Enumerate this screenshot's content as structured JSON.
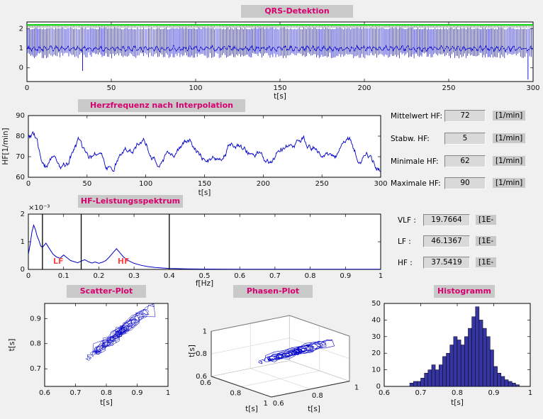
{
  "window": {
    "bg": "#f0f0f0"
  },
  "styles": {
    "title_bg": "#c9c9c9",
    "title_color": "#d6006e",
    "plot_bg": "#ffffff",
    "line_color": "#0000c8",
    "threshold_color": "#00d200",
    "band_label_color": "#ff4a4a",
    "hist_fill": "#3535a3",
    "field_bg": "#d9d9d9",
    "chip_bg": "#c9c9c9"
  },
  "fields": {
    "stats": [
      {
        "label": "Mittelwert HF:",
        "value": "72",
        "unit": "[1/min]"
      },
      {
        "label": "Stabw. HF:",
        "value": "5",
        "unit": "[1/min]"
      },
      {
        "label": "Minimale HF:",
        "value": "62",
        "unit": "[1/min]"
      },
      {
        "label": "Maximale HF:",
        "value": "90",
        "unit": "[1/min]"
      }
    ],
    "bands": [
      {
        "label": "VLF :",
        "value": "19.7664",
        "unit": "[1E-"
      },
      {
        "label": "LF :",
        "value": "46.1367",
        "unit": "[1E-"
      },
      {
        "label": "HF :",
        "value": "37.5419",
        "unit": "[1E-"
      }
    ]
  },
  "chart_data": [
    {
      "id": "qrs",
      "type": "line",
      "title": "QRS-Detektion",
      "xlabel": "t[s]",
      "xlim": [
        0,
        300
      ],
      "ylim": [
        -0.7,
        2.35
      ],
      "xticks": [
        0,
        50,
        100,
        150,
        200,
        250,
        300
      ],
      "yticks": [
        0,
        1,
        2
      ],
      "threshold_line": 2.2,
      "r_peak_level": 2.05,
      "baseline_level": 1.0,
      "beats_per_min": 72,
      "artifact_spikes": [
        [
          33,
          -0.15
        ],
        [
          297,
          -0.6
        ]
      ],
      "description": "ECG trace with detected R-peaks reaching ~2.05 and green detection threshold line at 2.2"
    },
    {
      "id": "hr",
      "type": "line",
      "title": "Herzfrequenz nach Interpolation",
      "xlabel": "t[s]",
      "ylabel": "HF[1/min]",
      "xlim": [
        0,
        300
      ],
      "ylim": [
        60,
        90
      ],
      "xticks": [
        0,
        50,
        100,
        150,
        200,
        250,
        300
      ],
      "yticks": [
        60,
        70,
        80,
        90
      ],
      "mean": 72,
      "std": 5,
      "min": 62,
      "max": 90,
      "description": "Interpolated instantaneous heart rate fluctuating between 62 and 90 1/min around mean 72"
    },
    {
      "id": "spectrum",
      "type": "line",
      "title": "HF-Leistungsspektrum",
      "xlabel": "f[Hz]",
      "y_unit_label": "×10⁻³",
      "xlim": [
        0,
        1
      ],
      "ylim": [
        0,
        2
      ],
      "xticks": [
        0,
        0.1,
        0.2,
        0.3,
        0.4,
        0.5,
        0.6,
        0.7,
        0.8,
        0.9,
        1
      ],
      "yticks": [
        0,
        1,
        2
      ],
      "band_lines": [
        0.04,
        0.15,
        0.4
      ],
      "band_labels": [
        {
          "text": "LF",
          "x": 0.085
        },
        {
          "text": "HF",
          "x": 0.27
        }
      ],
      "vlf": 19.7664,
      "lf": 46.1367,
      "hf": 37.5419,
      "points": [
        [
          0,
          0.55
        ],
        [
          0.005,
          0.9
        ],
        [
          0.01,
          1.35
        ],
        [
          0.015,
          1.6
        ],
        [
          0.02,
          1.45
        ],
        [
          0.025,
          1.2
        ],
        [
          0.03,
          1.05
        ],
        [
          0.035,
          0.85
        ],
        [
          0.04,
          0.8
        ],
        [
          0.05,
          0.95
        ],
        [
          0.06,
          0.75
        ],
        [
          0.07,
          0.55
        ],
        [
          0.08,
          0.45
        ],
        [
          0.09,
          0.4
        ],
        [
          0.1,
          0.52
        ],
        [
          0.11,
          0.42
        ],
        [
          0.12,
          0.32
        ],
        [
          0.13,
          0.28
        ],
        [
          0.14,
          0.24
        ],
        [
          0.15,
          0.3
        ],
        [
          0.16,
          0.35
        ],
        [
          0.17,
          0.28
        ],
        [
          0.18,
          0.23
        ],
        [
          0.19,
          0.27
        ],
        [
          0.2,
          0.22
        ],
        [
          0.21,
          0.26
        ],
        [
          0.22,
          0.32
        ],
        [
          0.23,
          0.45
        ],
        [
          0.24,
          0.6
        ],
        [
          0.25,
          0.75
        ],
        [
          0.26,
          0.6
        ],
        [
          0.27,
          0.45
        ],
        [
          0.28,
          0.35
        ],
        [
          0.29,
          0.28
        ],
        [
          0.3,
          0.22
        ],
        [
          0.32,
          0.15
        ],
        [
          0.34,
          0.1
        ],
        [
          0.36,
          0.07
        ],
        [
          0.38,
          0.05
        ],
        [
          0.4,
          0.035
        ],
        [
          0.45,
          0.02
        ],
        [
          0.5,
          0.012
        ],
        [
          0.6,
          0.008
        ],
        [
          0.7,
          0.006
        ],
        [
          0.8,
          0.005
        ],
        [
          0.9,
          0.004
        ],
        [
          1,
          0.004
        ]
      ]
    },
    {
      "id": "scatter",
      "type": "line",
      "title": "Scatter-Plot",
      "xlabel": "t[s]",
      "ylabel": "t[s]",
      "xlim": [
        0.6,
        1
      ],
      "ylim": [
        0.63,
        0.96
      ],
      "xticks": [
        0.6,
        0.7,
        0.8,
        0.9,
        1
      ],
      "yticks": [
        0.7,
        0.8,
        0.9
      ],
      "description": "Poincaré plot RR(i) vs RR(i+1); connected cloud elongated along the diagonal, centred near 0.83 s"
    },
    {
      "id": "phase",
      "type": "line3d",
      "title": "Phasen-Plot",
      "xlabel": "t[s]",
      "ylabel": "t[s]",
      "zlabel": "t[s]",
      "lim": [
        0.6,
        1
      ],
      "ticks": [
        0.6,
        0.8,
        1
      ],
      "description": "3D phase-space trajectory of RR triples (RRi, RRi+1, RRi+2) in a box 0.6–1 s per axis"
    },
    {
      "id": "hist",
      "type": "bar",
      "title": "Histogramm",
      "xlabel": "t[s]",
      "xlim": [
        0.6,
        1
      ],
      "ylim": [
        0,
        50
      ],
      "xticks": [
        0.6,
        0.7,
        0.8,
        0.9,
        1
      ],
      "yticks": [
        0,
        10,
        20,
        30,
        40,
        50
      ],
      "bin_width": 0.01,
      "bin_left_edges": [
        0.67,
        0.68,
        0.69,
        0.7,
        0.71,
        0.72,
        0.73,
        0.74,
        0.75,
        0.76,
        0.77,
        0.78,
        0.79,
        0.8,
        0.81,
        0.82,
        0.83,
        0.84,
        0.85,
        0.86,
        0.87,
        0.88,
        0.89,
        0.9,
        0.91,
        0.92,
        0.93,
        0.94,
        0.95,
        0.96
      ],
      "counts": [
        2,
        3,
        3,
        5,
        8,
        10,
        13,
        10,
        13,
        18,
        20,
        25,
        30,
        28,
        25,
        30,
        35,
        42,
        48,
        40,
        35,
        30,
        22,
        12,
        8,
        6,
        4,
        3,
        2,
        1
      ]
    }
  ]
}
